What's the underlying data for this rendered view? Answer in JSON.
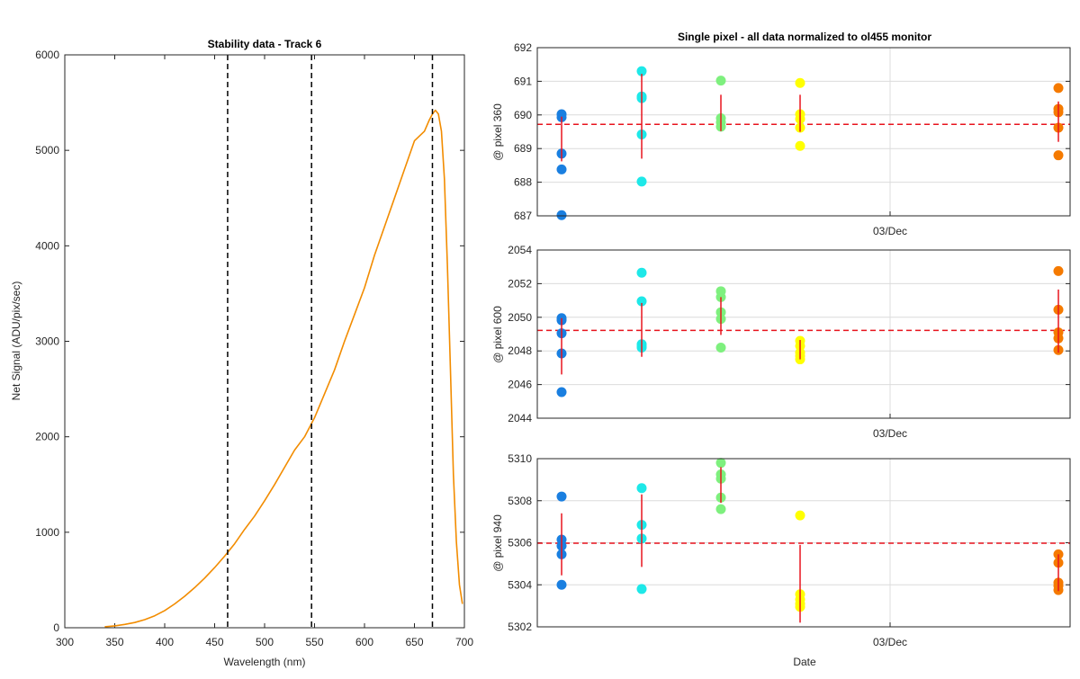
{
  "chart_data": [
    {
      "type": "line",
      "title": "Stability data - Track 6",
      "xlabel": "Wavelength (nm)",
      "ylabel": "Net Signal (ADU/pix/sec)",
      "xlim": [
        300,
        700
      ],
      "ylim": [
        0,
        6000
      ],
      "xticks": [
        "300",
        "350",
        "400",
        "450",
        "500",
        "550",
        "600",
        "650",
        "700"
      ],
      "yticks": [
        "0",
        "1000",
        "2000",
        "3000",
        "4000",
        "5000",
        "6000"
      ],
      "grid": false,
      "line_color": "#f28c00",
      "x": [
        340,
        350,
        360,
        370,
        380,
        390,
        400,
        410,
        420,
        430,
        440,
        450,
        460,
        470,
        480,
        490,
        500,
        510,
        520,
        530,
        540,
        550,
        560,
        570,
        580,
        590,
        600,
        610,
        620,
        630,
        640,
        650,
        660,
        665,
        668,
        671,
        674,
        677,
        680,
        683,
        686,
        689,
        692,
        695,
        698
      ],
      "y": [
        10,
        20,
        35,
        55,
        85,
        125,
        180,
        250,
        330,
        420,
        520,
        630,
        750,
        880,
        1030,
        1170,
        1330,
        1500,
        1680,
        1860,
        2000,
        2200,
        2450,
        2700,
        3000,
        3280,
        3560,
        3900,
        4200,
        4500,
        4800,
        5100,
        5200,
        5320,
        5380,
        5420,
        5380,
        5200,
        4700,
        3800,
        2700,
        1600,
        900,
        450,
        250
      ],
      "vlines": [
        463,
        547,
        668
      ],
      "vline_color": "#000000"
    },
    {
      "type": "scatter",
      "title": "Single pixel - all data normalized to ol455 monitor",
      "xlabel": "",
      "ylabel": "@ pixel 360",
      "xtick_labels": [
        "03/Dec"
      ],
      "ylim": [
        687,
        692
      ],
      "yticks": [
        "687",
        "688",
        "689",
        "690",
        "691",
        "692"
      ],
      "grid": true,
      "reference_line": 689.72,
      "groups": [
        {
          "color": "#1a7fe0",
          "values": [
            690.02,
            689.93,
            688.85,
            688.38,
            687.02
          ],
          "errorbar": [
            688.62,
            689.95
          ]
        },
        {
          "color": "#1ee8e8",
          "values": [
            691.3,
            690.55,
            690.5,
            689.42,
            688.02
          ],
          "errorbar": [
            688.7,
            691.22
          ]
        },
        {
          "color": "#7ef07e",
          "values": [
            691.02,
            689.9,
            689.78,
            689.65
          ],
          "errorbar": [
            689.52,
            690.6
          ]
        },
        {
          "color": "#ffff00",
          "values": [
            690.95,
            690.02,
            689.88,
            689.62,
            689.08
          ],
          "errorbar": [
            689.5,
            690.6
          ]
        },
        {
          "color": "#f57a00",
          "values": [
            690.8,
            690.18,
            690.08,
            689.62,
            688.8
          ],
          "errorbar": [
            689.2,
            690.4
          ]
        }
      ]
    },
    {
      "type": "scatter",
      "title": "",
      "xlabel": "",
      "ylabel": "@ pixel 600",
      "xtick_labels": [
        "03/Dec"
      ],
      "ylim": [
        2044,
        2054
      ],
      "yticks": [
        "2044",
        "2046",
        "2048",
        "2050",
        "2052",
        "2054"
      ],
      "grid": true,
      "reference_line": 2049.22,
      "groups": [
        {
          "color": "#1a7fe0",
          "values": [
            2049.95,
            2049.82,
            2049.05,
            2047.85,
            2045.55
          ],
          "errorbar": [
            2046.6,
            2049.95
          ]
        },
        {
          "color": "#1ee8e8",
          "values": [
            2052.65,
            2050.95,
            2048.4,
            2048.3,
            2048.2
          ],
          "errorbar": [
            2047.65,
            2050.85
          ]
        },
        {
          "color": "#7ef07e",
          "values": [
            2051.55,
            2051.2,
            2050.3,
            2049.9,
            2048.2
          ],
          "errorbar": [
            2048.95,
            2051.2
          ]
        },
        {
          "color": "#ffff00",
          "values": [
            2048.6,
            2048.3,
            2047.9,
            2047.7,
            2047.5
          ],
          "errorbar": [
            2047.5,
            2048.65
          ]
        },
        {
          "color": "#f57a00",
          "values": [
            2052.75,
            2050.45,
            2049.1,
            2048.75,
            2048.05
          ],
          "errorbar": [
            2047.9,
            2051.65
          ]
        }
      ]
    },
    {
      "type": "scatter",
      "title": "",
      "xlabel": "Date",
      "ylabel": "@ pixel 940",
      "xtick_labels": [
        "03/Dec"
      ],
      "ylim": [
        5302,
        5310
      ],
      "yticks": [
        "5302",
        "5304",
        "5306",
        "5308",
        "5310"
      ],
      "grid": true,
      "reference_line": 5305.98,
      "groups": [
        {
          "color": "#1a7fe0",
          "values": [
            5308.2,
            5306.15,
            5305.85,
            5305.45,
            5304.0
          ],
          "errorbar": [
            5304.45,
            5307.4
          ]
        },
        {
          "color": "#1ee8e8",
          "values": [
            5308.6,
            5306.85,
            5306.2,
            5303.8
          ],
          "errorbar": [
            5304.85,
            5308.3
          ]
        },
        {
          "color": "#7ef07e",
          "values": [
            5309.8,
            5309.25,
            5309.05,
            5308.15,
            5307.6
          ],
          "errorbar": [
            5307.9,
            5309.6
          ]
        },
        {
          "color": "#ffff00",
          "values": [
            5307.3,
            5303.55,
            5303.3,
            5303.1,
            5302.95
          ],
          "errorbar": [
            5302.2,
            5305.9
          ]
        },
        {
          "color": "#f57a00",
          "values": [
            5305.45,
            5305.05,
            5304.1,
            5303.95,
            5303.75
          ],
          "errorbar": [
            5303.7,
            5305.45
          ]
        }
      ]
    }
  ]
}
